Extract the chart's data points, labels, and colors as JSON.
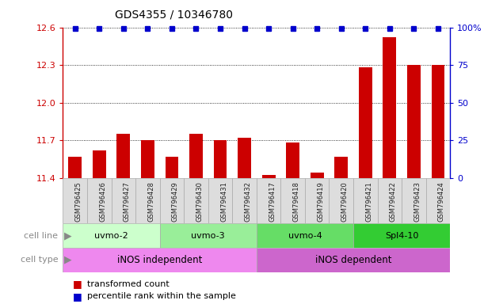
{
  "title": "GDS4355 / 10346780",
  "samples": [
    "GSM796425",
    "GSM796426",
    "GSM796427",
    "GSM796428",
    "GSM796429",
    "GSM796430",
    "GSM796431",
    "GSM796432",
    "GSM796417",
    "GSM796418",
    "GSM796419",
    "GSM796420",
    "GSM796421",
    "GSM796422",
    "GSM796423",
    "GSM796424"
  ],
  "red_values": [
    11.57,
    11.62,
    11.75,
    11.7,
    11.57,
    11.75,
    11.7,
    11.72,
    11.42,
    11.68,
    11.44,
    11.57,
    12.28,
    12.52,
    12.3,
    12.3
  ],
  "ylim_left": [
    11.4,
    12.6
  ],
  "ylim_right": [
    0,
    100
  ],
  "yticks_left": [
    11.4,
    11.7,
    12.0,
    12.3,
    12.6
  ],
  "yticks_right": [
    0,
    25,
    50,
    75,
    100
  ],
  "cell_lines": [
    {
      "label": "uvmo-2",
      "start": 0,
      "end": 4,
      "color": "#ccffcc"
    },
    {
      "label": "uvmo-3",
      "start": 4,
      "end": 8,
      "color": "#99ee99"
    },
    {
      "label": "uvmo-4",
      "start": 8,
      "end": 12,
      "color": "#66dd66"
    },
    {
      "label": "Spl4-10",
      "start": 12,
      "end": 16,
      "color": "#33cc33"
    }
  ],
  "cell_types": [
    {
      "label": "iNOS independent",
      "start": 0,
      "end": 8,
      "color": "#ee88ee"
    },
    {
      "label": "iNOS dependent",
      "start": 8,
      "end": 16,
      "color": "#cc66cc"
    }
  ],
  "red_color": "#cc0000",
  "blue_color": "#0000cc",
  "bar_width": 0.55,
  "sample_box_color": "#cccccc",
  "sample_label_color": "#222222",
  "row_label_color": "#888888",
  "arrow_color": "#888888"
}
